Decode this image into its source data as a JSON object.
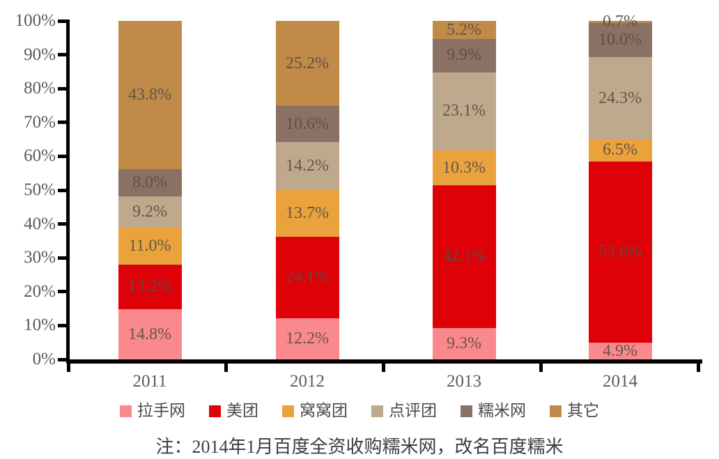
{
  "chart_data": {
    "type": "bar",
    "stacked": true,
    "percent_stacked": true,
    "title": "",
    "xlabel": "",
    "ylabel": "",
    "categories": [
      "2011",
      "2012",
      "2013",
      "2014"
    ],
    "series": [
      {
        "name": "拉手网",
        "color": "#f9898c",
        "values": [
          14.8,
          12.2,
          9.3,
          4.9
        ]
      },
      {
        "name": "美团",
        "color": "#de0108",
        "values": [
          13.2,
          24.1,
          42.1,
          53.6
        ]
      },
      {
        "name": "窝窝团",
        "color": "#eaa33c",
        "values": [
          11.0,
          13.7,
          10.3,
          6.5
        ]
      },
      {
        "name": "点评团",
        "color": "#bea98c",
        "values": [
          9.2,
          14.2,
          23.1,
          24.3
        ]
      },
      {
        "name": "糯米网",
        "color": "#8a7164",
        "values": [
          8.0,
          10.6,
          9.9,
          10.0
        ]
      },
      {
        "name": "其它",
        "color": "#c08a49",
        "values": [
          43.8,
          25.2,
          5.2,
          0.7
        ]
      }
    ],
    "data_label_suffix": "%",
    "ylim": [
      0,
      100
    ],
    "ytick_step": 10,
    "ytick_labels": [
      "0%",
      "10%",
      "20%",
      "30%",
      "40%",
      "50%",
      "60%",
      "70%",
      "80%",
      "90%",
      "100%"
    ],
    "grid": false,
    "legend_position": "bottom",
    "note": "注：2014年1月百度全资收购糯米网，改名百度糯米"
  }
}
